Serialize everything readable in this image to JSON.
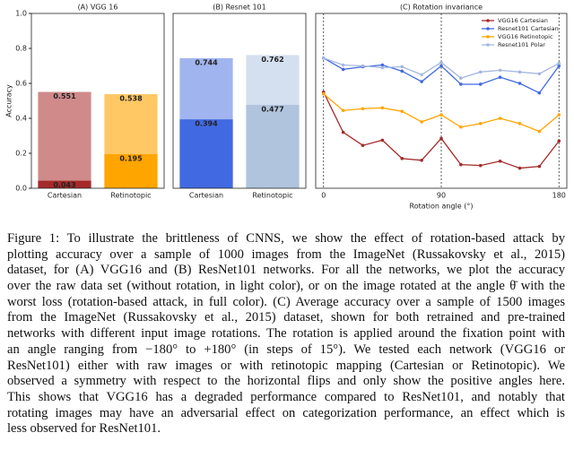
{
  "chart_data": [
    {
      "type": "bar",
      "title": "(A) VGG 16",
      "ylabel": "Accuracy",
      "categories": [
        "Cartesian",
        "Retinotopic"
      ],
      "series": [
        {
          "values": [
            0.551,
            0.538
          ],
          "colors": [
            "#d08a8a",
            "#ffc864"
          ]
        },
        {
          "values": [
            0.043,
            0.195
          ],
          "colors": [
            "#a52a2a",
            "#ffa500"
          ]
        }
      ],
      "ylim": [
        0,
        1
      ],
      "yticks": [
        {
          "value": 0,
          "label": "0.0"
        },
        0.2,
        0.4,
        0.6,
        0.8,
        {
          "value": 1,
          "label": "1.0"
        }
      ]
    },
    {
      "type": "bar",
      "title": "(B) Resnet 101",
      "categories": [
        "Cartesian",
        "Retinotopic"
      ],
      "series": [
        {
          "values": [
            0.744,
            0.762
          ],
          "colors": [
            "#a0b4ef",
            "#d4dff0"
          ]
        },
        {
          "values": [
            0.394,
            0.477
          ],
          "colors": [
            "#4169e1",
            "#b0c4de"
          ]
        }
      ],
      "ylim": [
        0,
        1
      ]
    },
    {
      "type": "line",
      "title": "(C) Rotation invariance",
      "xlabel": "Rotation angle (°)",
      "x": [
        0,
        15,
        30,
        45,
        60,
        75,
        90,
        105,
        120,
        135,
        150,
        165,
        180
      ],
      "series": [
        {
          "name": "VGG16 Cartesian",
          "color": "#a52a2a",
          "values": [
            0.55,
            0.32,
            0.245,
            0.275,
            0.17,
            0.16,
            0.285,
            0.135,
            0.13,
            0.155,
            0.115,
            0.125,
            0.27
          ]
        },
        {
          "name": "Resnet101 Cartesian",
          "color": "#4169e1",
          "values": [
            0.745,
            0.68,
            0.695,
            0.705,
            0.67,
            0.61,
            0.7,
            0.595,
            0.595,
            0.635,
            0.6,
            0.545,
            0.7
          ]
        },
        {
          "name": "VGG16 Retinotopic",
          "color": "#ffa500",
          "values": [
            0.54,
            0.445,
            0.455,
            0.46,
            0.44,
            0.38,
            0.42,
            0.35,
            0.37,
            0.4,
            0.37,
            0.325,
            0.42
          ]
        },
        {
          "name": "Resnet101 Polar",
          "color": "#a4b8e0",
          "values": [
            0.745,
            0.705,
            0.7,
            0.69,
            0.695,
            0.65,
            0.72,
            0.63,
            0.665,
            0.675,
            0.665,
            0.655,
            0.715
          ]
        }
      ],
      "xlim": [
        -6,
        186
      ],
      "xticks": [
        0,
        90,
        180
      ],
      "ylim": [
        0,
        1
      ],
      "grid": true,
      "legend": "upper right"
    }
  ],
  "caption": {
    "lines": [
      "Figure 1: To illustrate the brittleness of CNNS, we show the effect of rotation-based attack by",
      "plotting accuracy over a sample of 1000 images from the ImageNet (Russakovsky et al., 2015)",
      "dataset, for (A) VGG16 and (B) ResNet101 networks. For all the networks, we plot the accuracy",
      "over the raw data set (without rotation, in light color), or on the image rotated at the angle θ̄ with the",
      "worst loss (rotation-based attack, in full color). (C) Average accuracy over a sample of 1500 images",
      "from the ImageNet (Russakovsky et al., 2015) dataset, shown for both retrained and pre-trained",
      "networks with different input image rotations. The rotation is applied around the fixation point with",
      "an angle ranging from −180° to +180° (in steps of 15°). We tested each network (VGG16 or",
      "ResNet101) either with raw images or with retinotopic mapping (Cartesian or Retinotopic). We",
      "observed a symmetry with respect to the horizontal flips and only show the positive angles here.",
      "This shows that VGG16 has a degraded performance compared to ResNet101, and notably that",
      "rotating images may have an adversarial effect on categorization performance, an effect which is",
      "less observed for ResNet101."
    ]
  }
}
